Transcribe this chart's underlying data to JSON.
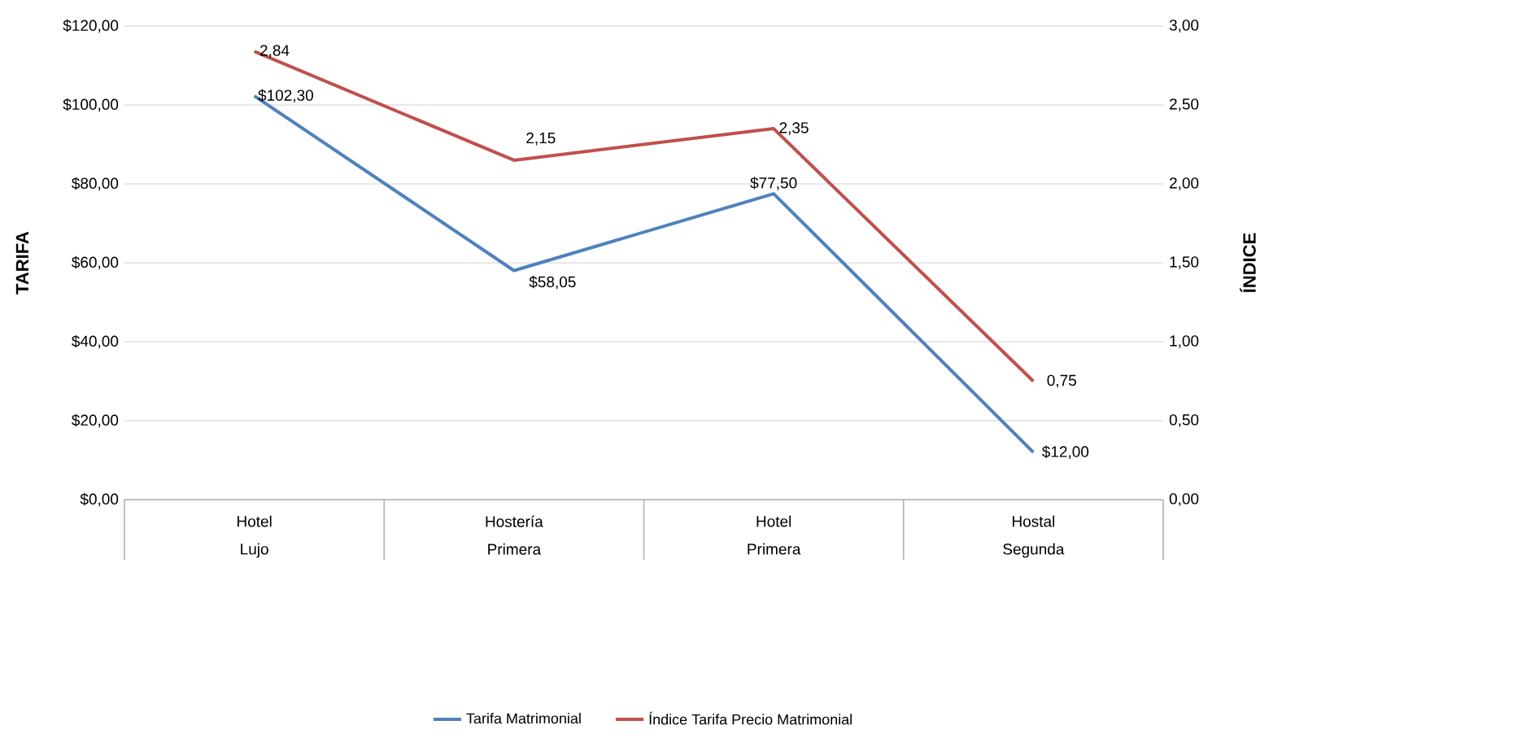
{
  "chart_data": {
    "type": "line",
    "categories": [
      "Hotel Lujo",
      "Hostería Primera",
      "Hotel Primera",
      "Hostal Segunda"
    ],
    "ylabel": "TARIFA",
    "y2label": "ÍNDICE",
    "ylim": [
      0,
      120
    ],
    "yticks": [
      {
        "value": 0,
        "label": "$0,00"
      },
      {
        "value": 20,
        "label": "$20,00"
      },
      {
        "value": 40,
        "label": "$40,00"
      },
      {
        "value": 60,
        "label": "$60,00"
      },
      {
        "value": 80,
        "label": "$80,00"
      },
      {
        "value": 100,
        "label": "$100,00"
      },
      {
        "value": 120,
        "label": "$120,00"
      }
    ],
    "y2lim": [
      0,
      3
    ],
    "y2ticks": [
      {
        "value": 0,
        "label": "0,00"
      },
      {
        "value": 0.5,
        "label": "0,50"
      },
      {
        "value": 1,
        "label": "1,00"
      },
      {
        "value": 1.5,
        "label": "1,50"
      },
      {
        "value": 2,
        "label": "2,00"
      },
      {
        "value": 2.5,
        "label": "2,50"
      },
      {
        "value": 3,
        "label": "3,00"
      }
    ],
    "grid": "y",
    "legend": "bottom",
    "marker": "none",
    "series": [
      {
        "name": "Tarifa Matrimonial",
        "color": "#4f81bd",
        "values": [
          102.3,
          58.05,
          77.5,
          12
        ],
        "value_labels": [
          "$102,30",
          "$58,05",
          "$77,50",
          "$12,00"
        ]
      },
      {
        "name": "Índice Tarifa Precio Matrimonial",
        "color": "#c0504d",
        "axis": "y2",
        "values": [
          2.84,
          2.15,
          2.35,
          0.75
        ],
        "value_labels": [
          "2,84",
          "2,15",
          "2,35",
          "0,75"
        ]
      }
    ]
  }
}
